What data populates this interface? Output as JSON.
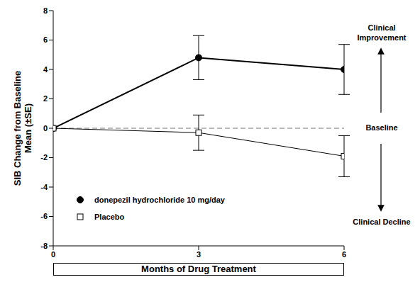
{
  "chart_data": {
    "type": "line",
    "x_label": "Months of Drug Treatment",
    "y_label": "SIB Change from Baseline\nMean (±SE)",
    "x": [
      0,
      3,
      6
    ],
    "xlim": [
      0,
      6
    ],
    "xticks": [
      0,
      3,
      6
    ],
    "ylim": [
      -8,
      8
    ],
    "yticks": [
      -8,
      -6,
      -4,
      -2,
      0,
      2,
      4,
      6,
      8
    ],
    "grid": false,
    "legend": "lower left",
    "series": [
      {
        "name": "donepezil hydrochloride 10 mg/day",
        "color": "#000000",
        "marker": "filled_circle",
        "line_style": "solid",
        "values": [
          0,
          4.8,
          4.0
        ],
        "errors": [
          0,
          1.5,
          1.7
        ]
      },
      {
        "name": "Placebo",
        "color": "#000000",
        "marker": "open_square",
        "line_style": "solid",
        "values": [
          0,
          -0.3,
          -1.9
        ],
        "errors": [
          0,
          1.2,
          1.4
        ]
      }
    ],
    "annotations": [
      "Clinical Improvement",
      "Baseline",
      "Clinical Decline"
    ],
    "baseline_value": 0
  }
}
